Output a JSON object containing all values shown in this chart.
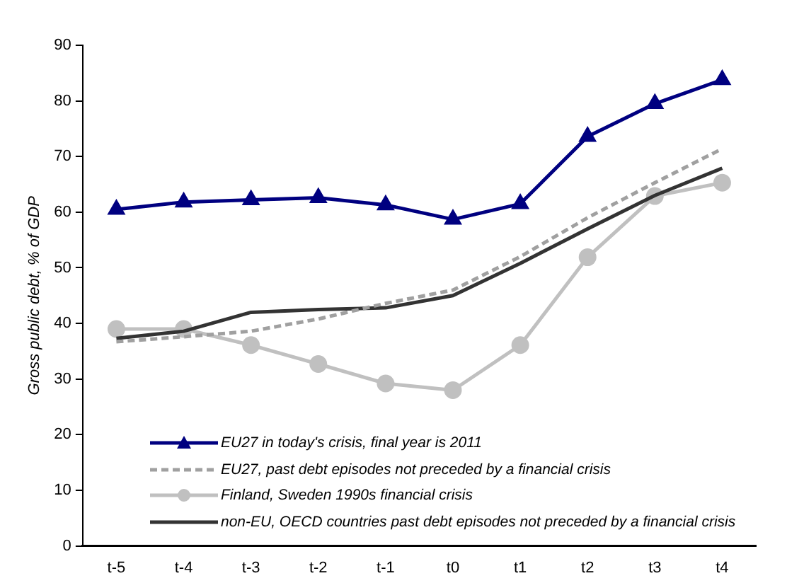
{
  "chart_data": {
    "type": "line",
    "ylabel": "Gross public debt, % of GDP",
    "categories": [
      "t-5",
      "t-4",
      "t-3",
      "t-2",
      "t-1",
      "t0",
      "t1",
      "t2",
      "t3",
      "t4"
    ],
    "ylim": [
      0,
      90
    ],
    "yticks": [
      0,
      10,
      20,
      30,
      40,
      50,
      60,
      70,
      80,
      90
    ],
    "grid": false,
    "legend": "bottom left",
    "series": [
      {
        "name": "EU27 in today's crisis, final year is 2011",
        "color": "#000080",
        "marker": "triangle",
        "line_style": "solid",
        "values": [
          60.5,
          61.8,
          62.2,
          62.6,
          61.3,
          58.7,
          61.5,
          73.6,
          79.5,
          83.8
        ]
      },
      {
        "name": "EU27, past debt episodes not preceded by a financial crisis",
        "color": "#a0a0a0",
        "marker": "none",
        "line_style": "dashed",
        "values": [
          36.7,
          37.6,
          38.6,
          40.8,
          43.6,
          46.0,
          52.0,
          59.0,
          65.3,
          71.4
        ]
      },
      {
        "name": "Finland, Sweden 1990s financial crisis",
        "color": "#c0c0c0",
        "marker": "circle",
        "line_style": "solid",
        "values": [
          39.0,
          39.0,
          36.1,
          32.7,
          29.2,
          28.0,
          36.1,
          51.9,
          62.9,
          65.3
        ]
      },
      {
        "name": "non-EU, OECD countries past debt episodes not preceded by a financial crisis",
        "color": "#333333",
        "marker": "none",
        "line_style": "solid",
        "values": [
          37.3,
          38.6,
          42.0,
          42.5,
          42.8,
          45.0,
          50.8,
          57.0,
          63.0,
          67.9
        ]
      }
    ]
  }
}
